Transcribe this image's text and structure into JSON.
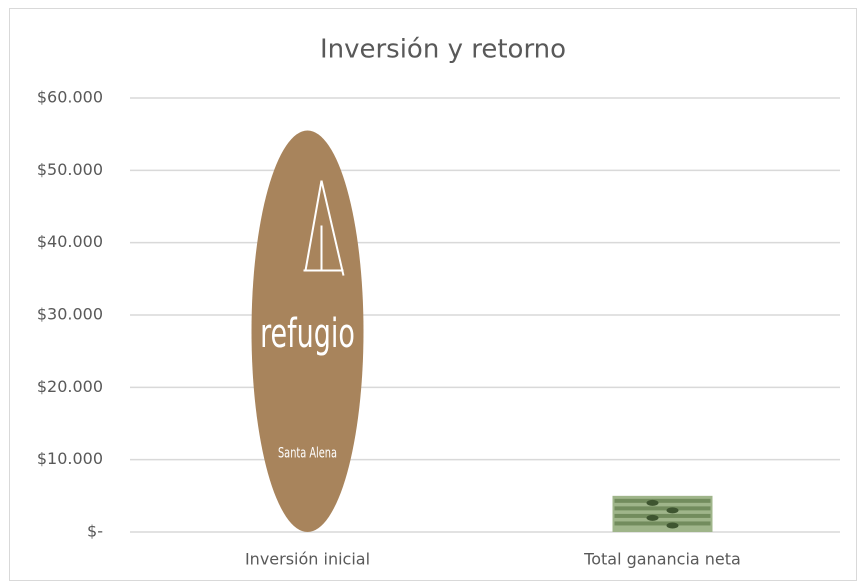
{
  "chart_data": {
    "type": "bar",
    "title": "Inversión y retorno",
    "categories": [
      "Inversión inicial",
      "Total ganancia neta"
    ],
    "values": [
      55500,
      5000
    ],
    "colors": [
      "#a8845c",
      "#9fb58a"
    ],
    "bar_image_texts": [
      "refugio",
      "Santa Alena"
    ],
    "ylim": [
      0,
      60000
    ],
    "yticks": [
      {
        "value": 0,
        "label": "$-"
      },
      {
        "value": 10000,
        "label": "$10.000"
      },
      {
        "value": 20000,
        "label": "$20.000"
      },
      {
        "value": 30000,
        "label": "$30.000"
      },
      {
        "value": 40000,
        "label": "$40.000"
      },
      {
        "value": 50000,
        "label": "$50.000"
      },
      {
        "value": 60000,
        "label": "$60.000"
      }
    ],
    "grid": true
  }
}
